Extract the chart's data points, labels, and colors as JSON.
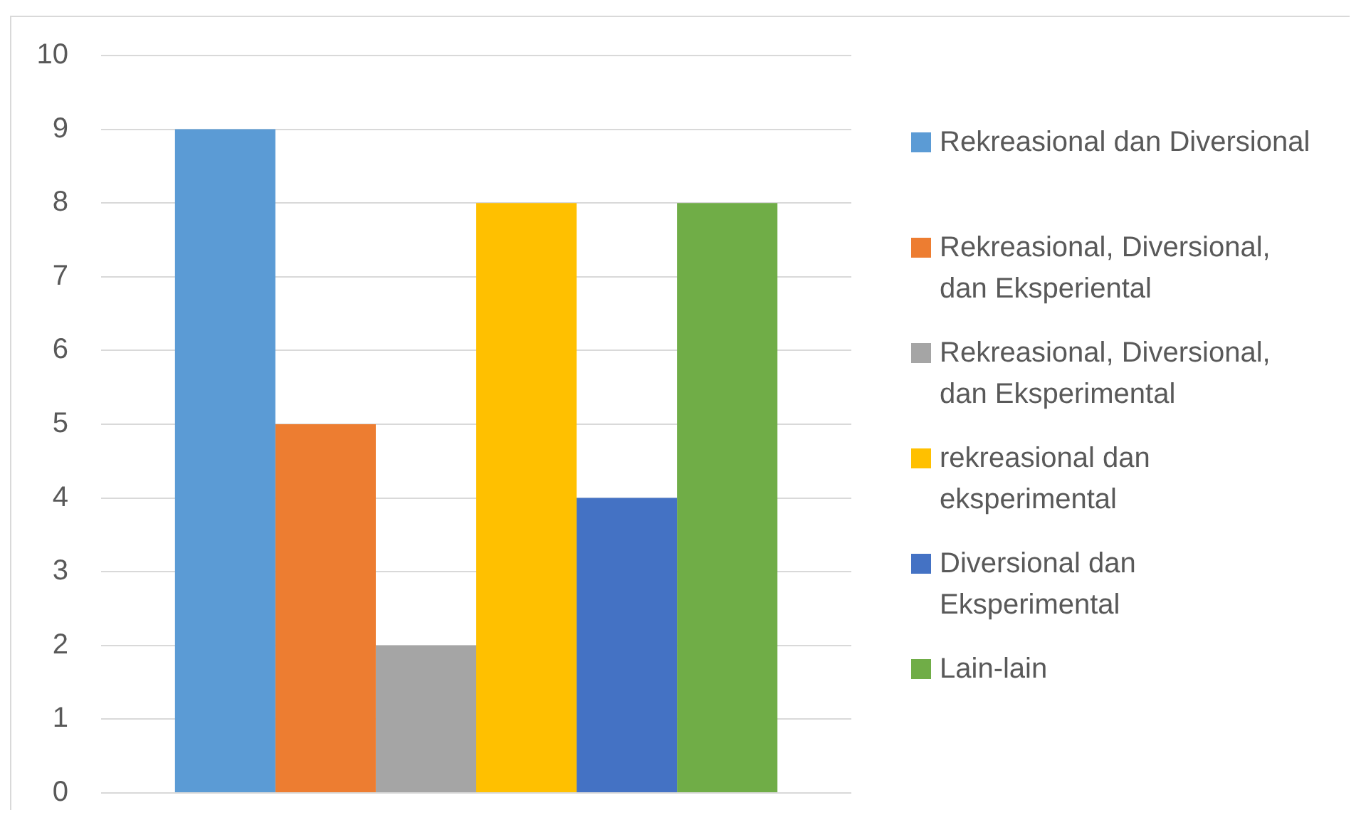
{
  "chart_data": {
    "type": "bar",
    "categories": [
      null
    ],
    "series": [
      {
        "name": "Rekreasional dan Diversional",
        "color": "#5b9bd5",
        "values": [
          9
        ]
      },
      {
        "name": "Rekreasional, Diversional, dan Eksperiental",
        "color": "#ed7d31",
        "values": [
          5
        ]
      },
      {
        "name": "Rekreasional, Diversional, dan Eksperimental",
        "color": "#a5a5a5",
        "values": [
          2
        ]
      },
      {
        "name": "rekreasional dan eksperimental",
        "color": "#ffc000",
        "values": [
          8
        ]
      },
      {
        "name": "Diversional dan Eksperimental",
        "color": "#4472c4",
        "values": [
          4
        ]
      },
      {
        "name": "Lain-lain",
        "color": "#70ad47",
        "values": [
          8
        ]
      }
    ],
    "ylim": [
      0,
      10
    ],
    "yticks": [
      0,
      1,
      2,
      3,
      4,
      5,
      6,
      7,
      8,
      9,
      10
    ],
    "grid": "y",
    "legend": "right",
    "tick_labels": "y"
  }
}
